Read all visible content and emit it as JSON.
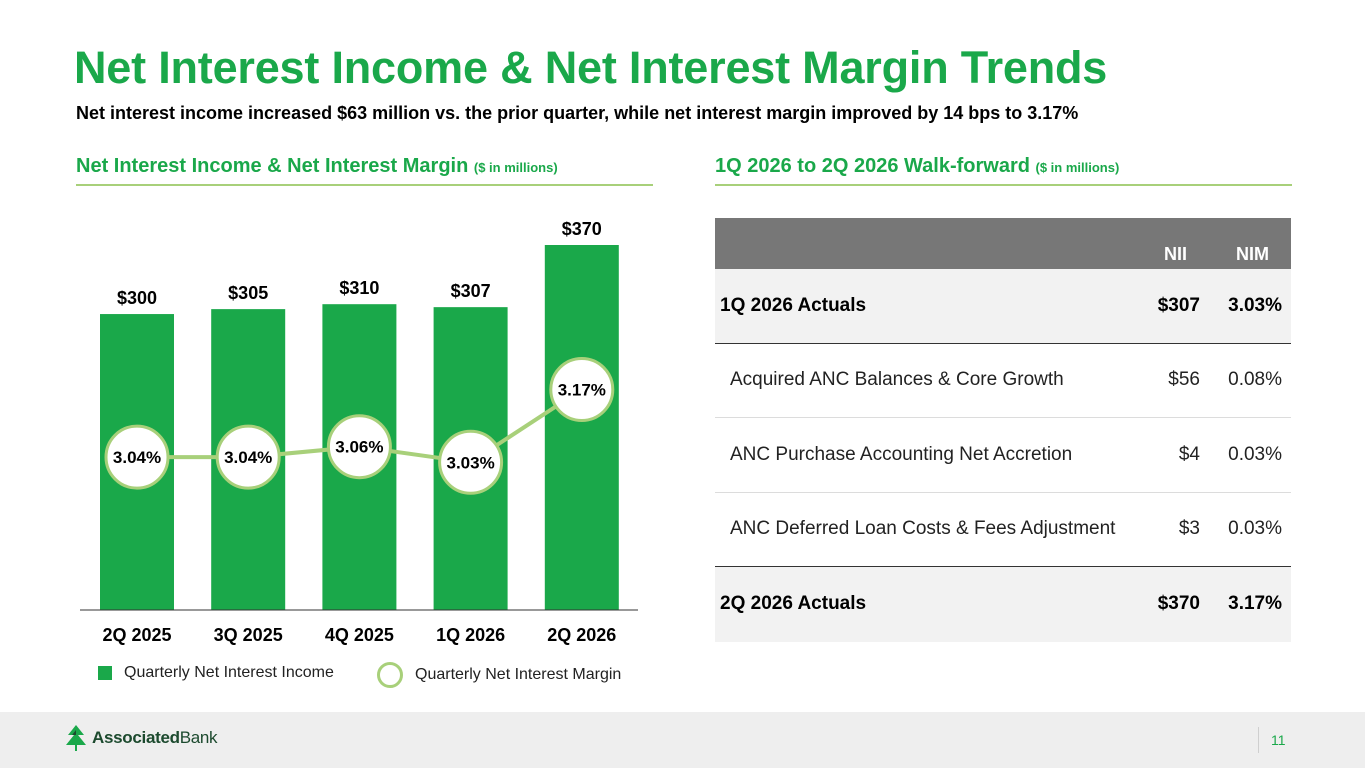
{
  "title": "Net Interest Income & Net Interest Margin Trends",
  "subtitle": "Net interest income increased $63 million vs. the prior quarter, while net interest margin improved by 14 bps to 3.17%",
  "left_section": {
    "heading": "Net Interest Income & Net Interest Margin",
    "unit": "($ in millions)"
  },
  "right_section": {
    "heading": "1Q 2026 to 2Q 2026 Walk-forward",
    "unit": "($ in millions)"
  },
  "colors": {
    "accent": "#1aa84a",
    "nim_line": "#a8d07a",
    "table_header": "#777777",
    "table_total_bg": "#f2f2f2"
  },
  "chart_data": {
    "type": "bar",
    "categories": [
      "2Q 2025",
      "3Q 2025",
      "4Q 2025",
      "1Q 2026",
      "2Q 2026"
    ],
    "series": [
      {
        "name": "Quarterly Net Interest Income",
        "type": "bar",
        "values": [
          300,
          305,
          310,
          307,
          370
        ],
        "labels": [
          "$300",
          "$305",
          "$310",
          "$307",
          "$370"
        ]
      },
      {
        "name": "Quarterly Net Interest Margin",
        "type": "line",
        "values": [
          3.04,
          3.04,
          3.06,
          3.03,
          3.17
        ],
        "labels": [
          "3.04%",
          "3.04%",
          "3.06%",
          "3.03%",
          "3.17%"
        ]
      }
    ],
    "legend": [
      "Quarterly Net Interest Income",
      "Quarterly Net Interest Margin"
    ],
    "legend_position": "bottom"
  },
  "walk_table": {
    "headers": {
      "label": "",
      "nii": "NII",
      "nim": "NIM"
    },
    "rows": [
      {
        "label": "1Q 2026 Actuals",
        "nii": "$307",
        "nim": "3.03%"
      },
      {
        "label": "Acquired ANC Balances & Core Growth",
        "nii": "$56",
        "nim": "0.08%"
      },
      {
        "label": "ANC Purchase Accounting Net Accretion",
        "nii": "$4",
        "nim": "0.03%"
      },
      {
        "label": "ANC Deferred Loan Costs & Fees Adjustment",
        "nii": "$3",
        "nim": "0.03%"
      },
      {
        "label": "2Q 2026 Actuals",
        "nii": "$370",
        "nim": "3.17%"
      }
    ]
  },
  "footer": {
    "logo_bold": "Associated",
    "logo_regular": "Bank",
    "page_number": "11"
  }
}
